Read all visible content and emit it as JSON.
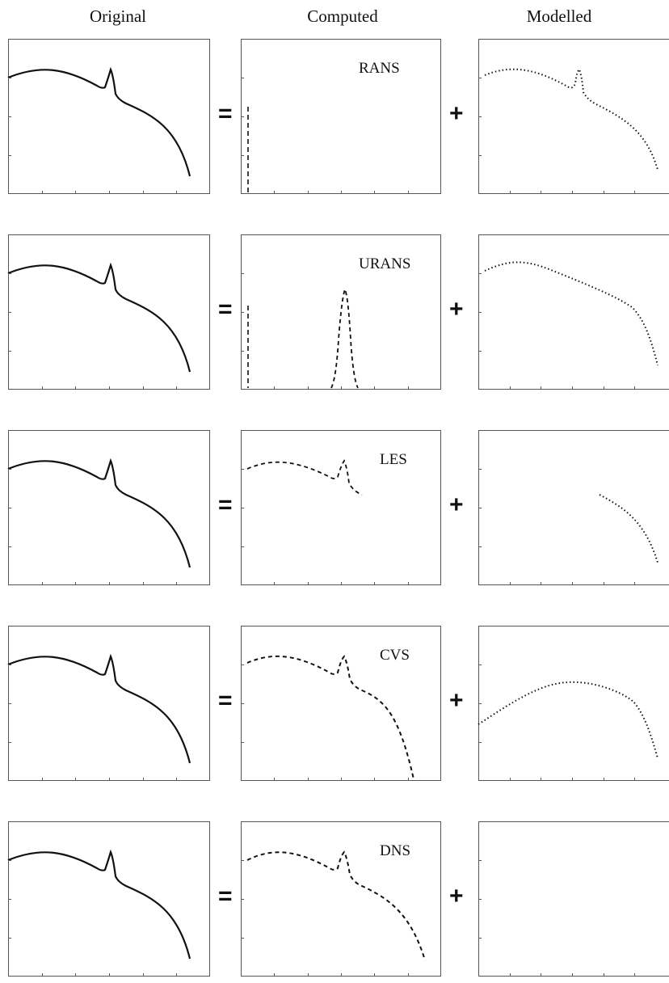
{
  "headers": {
    "original": "Original",
    "computed": "Computed",
    "modelled": "Modelled"
  },
  "operators": {
    "equals": "=",
    "plus": "+"
  },
  "rows": [
    {
      "method": "RANS"
    },
    {
      "method": "URANS"
    },
    {
      "method": "LES"
    },
    {
      "method": "CVS"
    },
    {
      "method": "DNS"
    }
  ],
  "colors": {
    "curve": "#111111",
    "frame": "#555555"
  }
}
